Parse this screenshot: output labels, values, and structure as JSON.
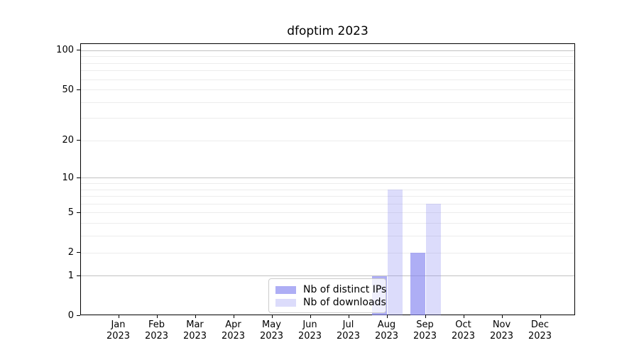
{
  "chart_data": {
    "type": "bar",
    "title": "dfoptim 2023",
    "categories": [
      "Jan",
      "Feb",
      "Mar",
      "Apr",
      "May",
      "Jun",
      "Jul",
      "Aug",
      "Sep",
      "Oct",
      "Nov",
      "Dec"
    ],
    "category_year": "2023",
    "series": [
      {
        "name": "Nb of distinct IPs",
        "key": "distinct-ips",
        "color": "rgba(130,130,240,0.65)",
        "values": [
          0,
          0,
          0,
          0,
          0,
          0,
          0,
          1,
          2,
          0,
          0,
          0
        ]
      },
      {
        "name": "Nb of downloads",
        "key": "downloads",
        "color": "rgba(130,130,240,0.28)",
        "values": [
          0,
          0,
          0,
          0,
          0,
          0,
          0,
          8,
          6,
          0,
          0,
          0
        ]
      }
    ],
    "xlabel": "",
    "ylabel": "",
    "yscale": "log1p",
    "ylim": [
      0,
      112
    ],
    "ytick_values": [
      0,
      1,
      2,
      5,
      10,
      20,
      50,
      100
    ],
    "ytick_labels": [
      "0",
      "1",
      "2",
      "5",
      "10",
      "20",
      "50",
      "100"
    ],
    "major_grid_values": [
      1,
      10,
      100
    ],
    "minor_grid_values": [
      2,
      3,
      4,
      5,
      6,
      7,
      8,
      9,
      20,
      30,
      40,
      50,
      60,
      70,
      80,
      90
    ],
    "grid": "on",
    "legend_position": "inside-bottom-center"
  },
  "colors": {
    "background": "#ffffff",
    "axis": "#000000",
    "major_grid": "#c2c2c2",
    "minor_grid": "#ececec",
    "bar_distinct_ips": "rgba(130,130,240,0.65)",
    "bar_downloads": "rgba(130,130,240,0.28)",
    "legend_border": "#cccccc"
  }
}
